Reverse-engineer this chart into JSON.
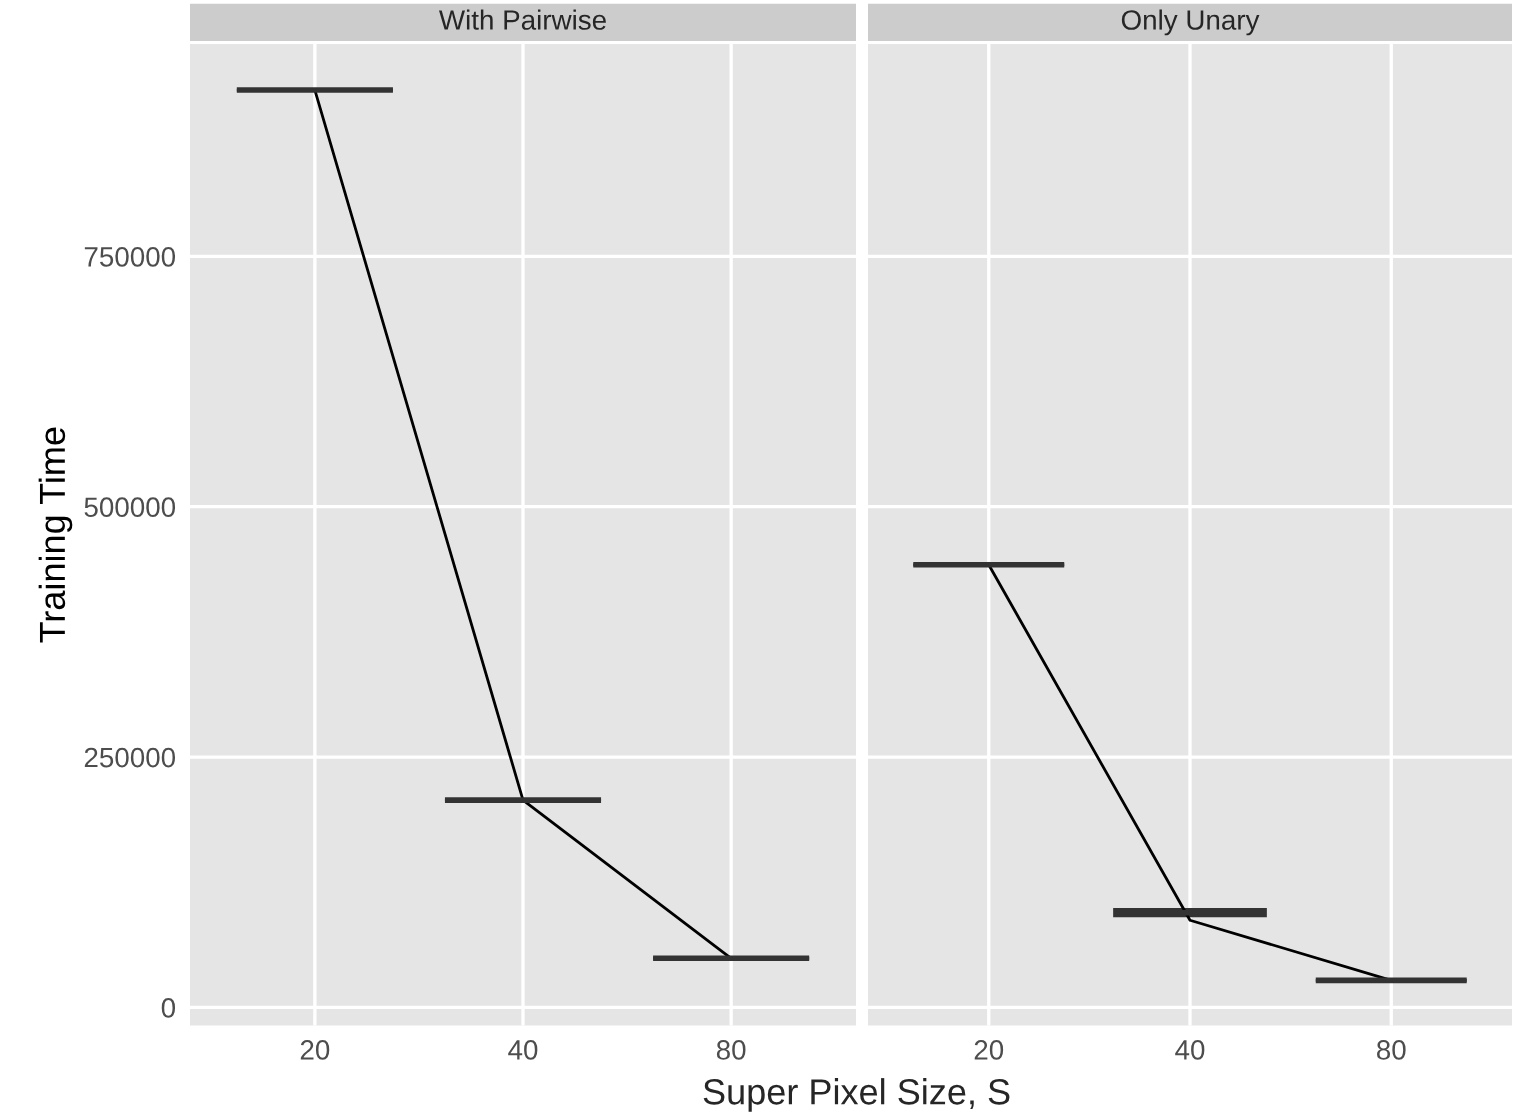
{
  "chart_data": [
    {
      "type": "box",
      "color": "#333333",
      "title": "With Pairwise",
      "xlabel": "Super Pixel Size, S",
      "ylabel": "Training Time",
      "categories": [
        "20",
        "40",
        "80"
      ],
      "boxes": [
        {
          "low": 916000,
          "q1": 916000,
          "median": 916000,
          "q3": 916000,
          "high": 916000
        },
        {
          "low": 207000,
          "q1": 207000,
          "median": 207000,
          "q3": 207000,
          "high": 207000
        },
        {
          "low": 49000,
          "q1": 49000,
          "median": 49000,
          "q3": 49000,
          "high": 49000
        }
      ],
      "series": [
        {
          "type": "line",
          "color": "#000000",
          "values": [
            916000,
            207000,
            49000
          ]
        }
      ],
      "ylim": [
        -18000,
        962000
      ],
      "yticks": [
        0,
        250000,
        500000,
        750000
      ],
      "grid": true
    },
    {
      "type": "box",
      "color": "#333333",
      "title": "Only Unary",
      "categories": [
        "20",
        "40",
        "80"
      ],
      "boxes": [
        {
          "low": 442000,
          "q1": 442000,
          "median": 442000,
          "q3": 442000,
          "high": 442000
        },
        {
          "low": 91500,
          "q1": 91500,
          "median": 94500,
          "q3": 97900,
          "high": 97900
        },
        {
          "low": 27000,
          "q1": 27000,
          "median": 27000,
          "q3": 27000,
          "high": 27000
        }
      ],
      "series": [
        {
          "type": "line",
          "color": "#000000",
          "values": [
            442000,
            87000,
            27000
          ]
        }
      ],
      "ylim": [
        -18000,
        962000
      ],
      "yticks": [
        0,
        250000,
        500000,
        750000
      ],
      "grid": true,
      "tick_labels": "x"
    }
  ]
}
